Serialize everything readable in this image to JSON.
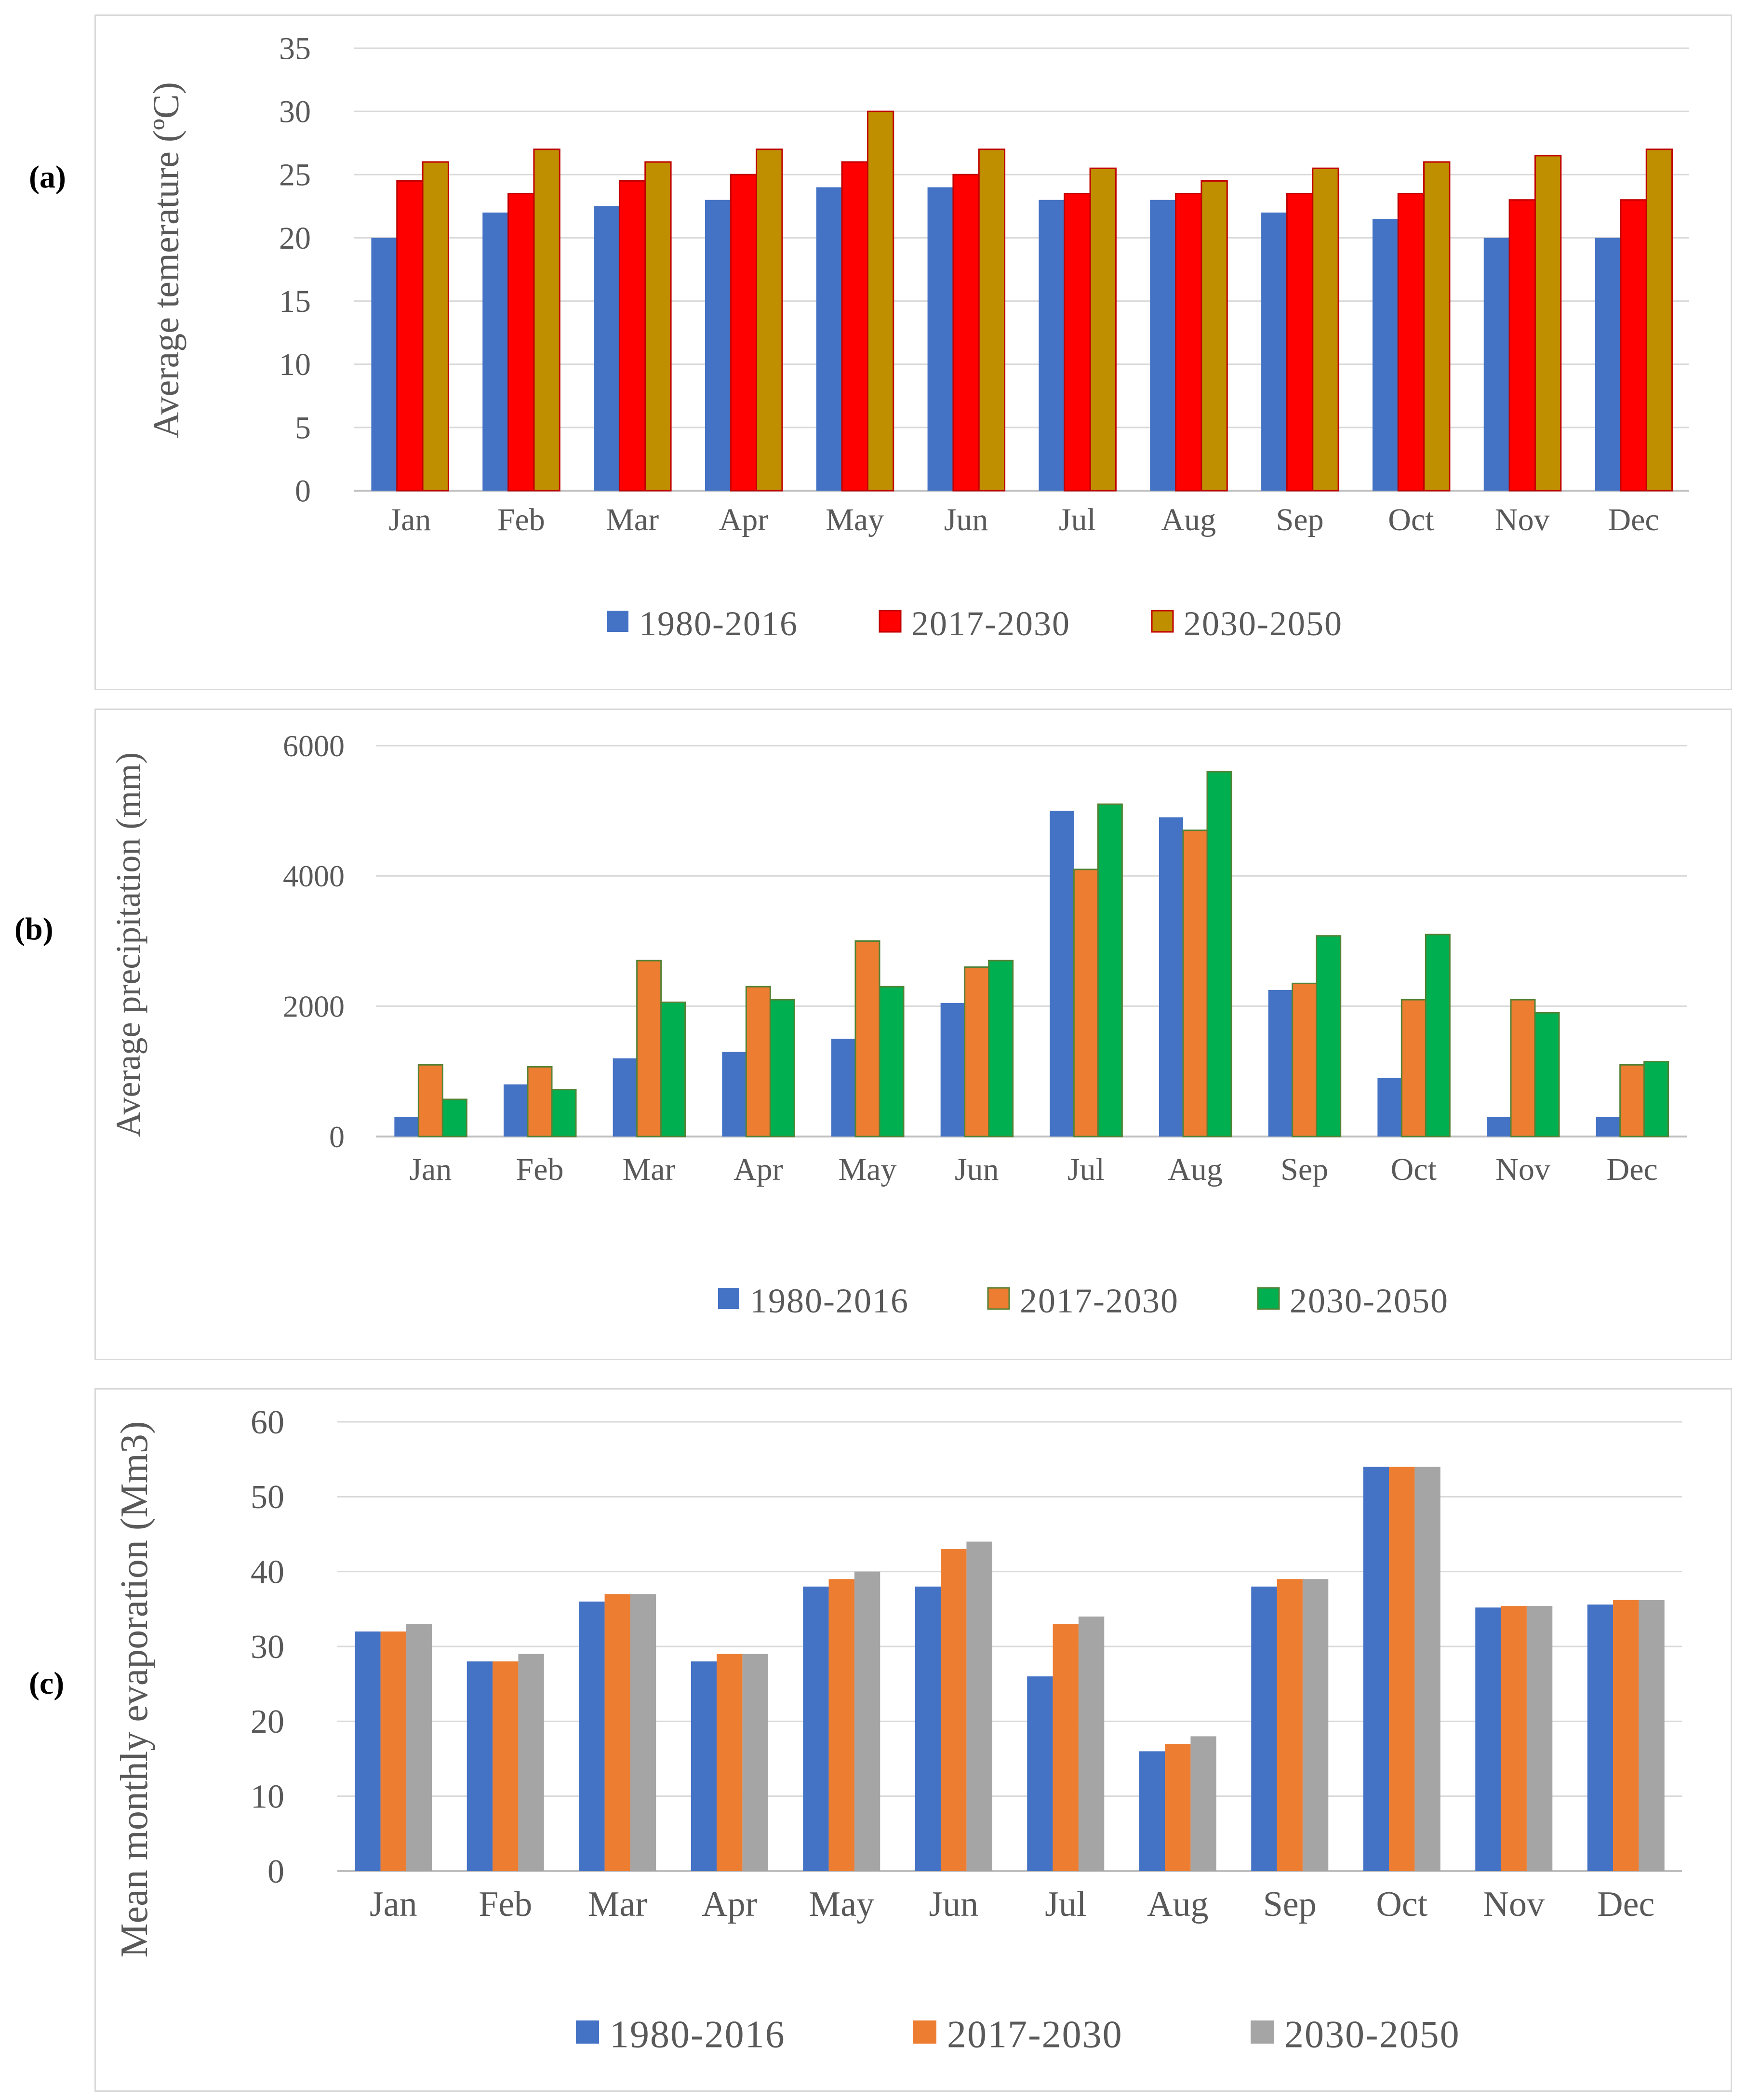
{
  "figure": {
    "panels": [
      {
        "label": "(a)"
      },
      {
        "label": "(b)"
      },
      {
        "label": "(c)"
      }
    ]
  },
  "chart_data": [
    {
      "type": "bar",
      "title": "",
      "xlabel": "",
      "ylabel": "Average temerature (ºC)",
      "ylim": [
        0,
        35
      ],
      "yticks": [
        "0",
        "5",
        "10",
        "15",
        "20",
        "25",
        "30",
        "35"
      ],
      "categories": [
        "Jan",
        "Feb",
        "Mar",
        "Apr",
        "May",
        "Jun",
        "Jul",
        "Aug",
        "Sep",
        "Oct",
        "Nov",
        "Dec"
      ],
      "legend_position": "bottom",
      "series": [
        {
          "name": "1980-2016",
          "color": "#4472c4",
          "values": [
            20,
            22,
            22.5,
            23,
            24,
            24,
            23,
            23,
            22,
            21.5,
            20,
            20
          ]
        },
        {
          "name": "2017-2030",
          "color": "#ff0000",
          "values": [
            24.5,
            23.5,
            24.5,
            25,
            26,
            25,
            23.5,
            23.5,
            23.5,
            23.5,
            23,
            23
          ]
        },
        {
          "name": "2030-2050",
          "color": "#bf8f00",
          "values": [
            26,
            27,
            26,
            27,
            30,
            27,
            25.5,
            24.5,
            25.5,
            26,
            26.5,
            27
          ]
        }
      ]
    },
    {
      "type": "bar",
      "title": "",
      "xlabel": "",
      "ylabel": "Average  precipitation (mm)",
      "ylim": [
        0,
        6000
      ],
      "yticks": [
        "0",
        "2000",
        "4000",
        "6000"
      ],
      "categories": [
        "Jan",
        "Feb",
        "Mar",
        "Apr",
        "May",
        "Jun",
        "Jul",
        "Aug",
        "Sep",
        "Oct",
        "Nov",
        "Dec"
      ],
      "legend_position": "bottom",
      "series": [
        {
          "name": "1980-2016",
          "color": "#4472c4",
          "values": [
            300,
            800,
            1200,
            1300,
            1500,
            2050,
            5000,
            4900,
            2250,
            900,
            300,
            300
          ]
        },
        {
          "name": "2017-2030",
          "color": "#ed7d31",
          "values": [
            1100,
            1070,
            2700,
            2300,
            3000,
            2600,
            4100,
            4700,
            2350,
            2100,
            2100,
            1100
          ]
        },
        {
          "name": "2030-2050",
          "color": "#00b050",
          "values": [
            570,
            720,
            2060,
            2100,
            2300,
            2700,
            5100,
            5600,
            3080,
            3100,
            1900,
            1150
          ]
        }
      ]
    },
    {
      "type": "bar",
      "title": "",
      "xlabel": "",
      "ylabel": "Mean monthly  evaporation (Mm3)",
      "ylim": [
        0,
        60
      ],
      "yticks": [
        "0",
        "10",
        "20",
        "30",
        "40",
        "50",
        "60"
      ],
      "categories": [
        "Jan",
        "Feb",
        "Mar",
        "Apr",
        "May",
        "Jun",
        "Jul",
        "Aug",
        "Sep",
        "Oct",
        "Nov",
        "Dec"
      ],
      "legend_position": "bottom",
      "series": [
        {
          "name": "1980-2016",
          "color": "#4472c4",
          "values": [
            32,
            28,
            36,
            28,
            38,
            38,
            26,
            16,
            38,
            54,
            35.2,
            35.6
          ]
        },
        {
          "name": "2017-2030",
          "color": "#ed7d31",
          "values": [
            32,
            28,
            37,
            29,
            39,
            43,
            33,
            17,
            39,
            54,
            35.4,
            36.2
          ]
        },
        {
          "name": "2030-2050",
          "color": "#a5a5a5",
          "values": [
            33,
            29,
            37,
            29,
            40,
            44,
            34,
            18,
            39,
            54,
            35.4,
            36.2
          ]
        }
      ]
    }
  ]
}
